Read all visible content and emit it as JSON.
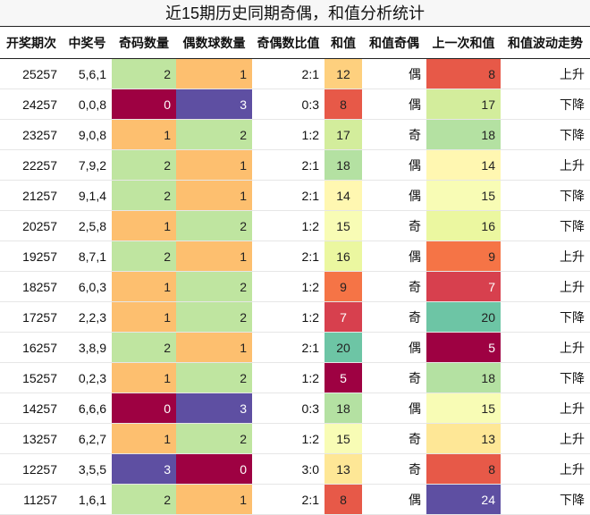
{
  "title": "近15期历史同期奇偶，和值分析统计",
  "headers": [
    "开奖期次",
    "中奖号",
    "奇码数量",
    "偶数球数量",
    "奇偶数比值",
    "和值",
    "和值奇偶",
    "上一次和值",
    "和值波动走势"
  ],
  "chart_data": {
    "type": "table",
    "title": "近15期历史同期奇偶，和值分析统计",
    "columns": [
      "开奖期次",
      "中奖号",
      "奇码数量",
      "偶数球数量",
      "奇偶数比值",
      "和值",
      "和值奇偶",
      "上一次和值",
      "和值波动走势"
    ],
    "rows": [
      [
        "25257",
        "5,6,1",
        2,
        1,
        "2:1",
        12,
        "偶",
        8,
        "上升"
      ],
      [
        "24257",
        "0,0,8",
        0,
        3,
        "0:3",
        8,
        "偶",
        17,
        "下降"
      ],
      [
        "23257",
        "9,0,8",
        1,
        2,
        "1:2",
        17,
        "奇",
        18,
        "下降"
      ],
      [
        "22257",
        "7,9,2",
        2,
        1,
        "2:1",
        18,
        "偶",
        14,
        "上升"
      ],
      [
        "21257",
        "9,1,4",
        2,
        1,
        "2:1",
        14,
        "偶",
        15,
        "下降"
      ],
      [
        "20257",
        "2,5,8",
        1,
        2,
        "1:2",
        15,
        "奇",
        16,
        "下降"
      ],
      [
        "19257",
        "8,7,1",
        2,
        1,
        "2:1",
        16,
        "偶",
        9,
        "上升"
      ],
      [
        "18257",
        "6,0,3",
        1,
        2,
        "1:2",
        9,
        "奇",
        7,
        "上升"
      ],
      [
        "17257",
        "2,2,3",
        1,
        2,
        "1:2",
        7,
        "奇",
        20,
        "下降"
      ],
      [
        "16257",
        "3,8,9",
        2,
        1,
        "2:1",
        20,
        "偶",
        5,
        "上升"
      ],
      [
        "15257",
        "0,2,3",
        1,
        2,
        "1:2",
        5,
        "奇",
        18,
        "下降"
      ],
      [
        "14257",
        "6,6,6",
        0,
        3,
        "0:3",
        18,
        "偶",
        15,
        "上升"
      ],
      [
        "13257",
        "6,2,7",
        1,
        2,
        "1:2",
        15,
        "奇",
        13,
        "上升"
      ],
      [
        "12257",
        "3,5,5",
        3,
        0,
        "3:0",
        13,
        "奇",
        8,
        "上升"
      ],
      [
        "11257",
        "1,6,1",
        2,
        1,
        "2:1",
        8,
        "偶",
        24,
        "下降"
      ]
    ],
    "heatmap_columns": [
      "奇码数量",
      "偶数球数量",
      "和值",
      "上一次和值"
    ],
    "colormap": "Spectral"
  }
}
